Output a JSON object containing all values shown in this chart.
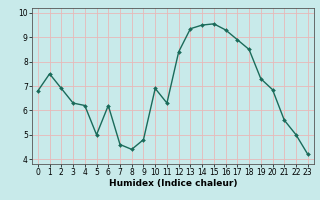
{
  "x": [
    0,
    1,
    2,
    3,
    4,
    5,
    6,
    7,
    8,
    9,
    10,
    11,
    12,
    13,
    14,
    15,
    16,
    17,
    18,
    19,
    20,
    21,
    22,
    23
  ],
  "y": [
    6.8,
    7.5,
    6.9,
    6.3,
    6.2,
    5.0,
    6.2,
    4.6,
    4.4,
    4.8,
    6.9,
    6.3,
    8.4,
    9.35,
    9.5,
    9.55,
    9.3,
    8.9,
    8.5,
    7.3,
    6.85,
    5.6,
    5.0,
    4.2
  ],
  "line_color": "#1a6b5a",
  "marker": "D",
  "marker_size": 2.0,
  "bg_color": "#c8eaea",
  "grid_color": "#e8b8b8",
  "xlabel": "Humidex (Indice chaleur)",
  "xlim": [
    -0.5,
    23.5
  ],
  "ylim": [
    3.8,
    10.2
  ],
  "yticks": [
    4,
    5,
    6,
    7,
    8,
    9,
    10
  ],
  "xticks": [
    0,
    1,
    2,
    3,
    4,
    5,
    6,
    7,
    8,
    9,
    10,
    11,
    12,
    13,
    14,
    15,
    16,
    17,
    18,
    19,
    20,
    21,
    22,
    23
  ],
  "tick_fontsize": 5.5,
  "xlabel_fontsize": 6.5,
  "line_width": 1.0
}
